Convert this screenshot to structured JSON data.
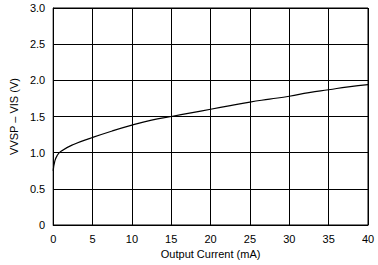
{
  "chart_data": {
    "type": "line",
    "x_label": "Output Current (mA)",
    "y_label": "VVSP – VIS (V)",
    "x": [
      0,
      0.2,
      0.5,
      1,
      2.5,
      5,
      7.5,
      10,
      12.5,
      15,
      17.5,
      20,
      22.5,
      25,
      27.5,
      30,
      32.5,
      35,
      37.5,
      40
    ],
    "values": [
      0.75,
      0.88,
      0.96,
      1.02,
      1.11,
      1.21,
      1.3,
      1.38,
      1.45,
      1.5,
      1.55,
      1.6,
      1.65,
      1.7,
      1.74,
      1.78,
      1.83,
      1.87,
      1.91,
      1.94
    ],
    "color": "#000000",
    "xlim": [
      0,
      40
    ],
    "xticks": [
      0,
      5,
      10,
      15,
      20,
      25,
      30,
      35,
      40
    ],
    "ylim": [
      0,
      3
    ],
    "yticks": [
      0,
      0.5,
      {
        "value": 1,
        "label": "1.0"
      },
      1.5,
      {
        "value": 2,
        "label": "2.0"
      },
      2.5,
      {
        "value": 3,
        "label": "3.0"
      }
    ],
    "grid": true
  }
}
